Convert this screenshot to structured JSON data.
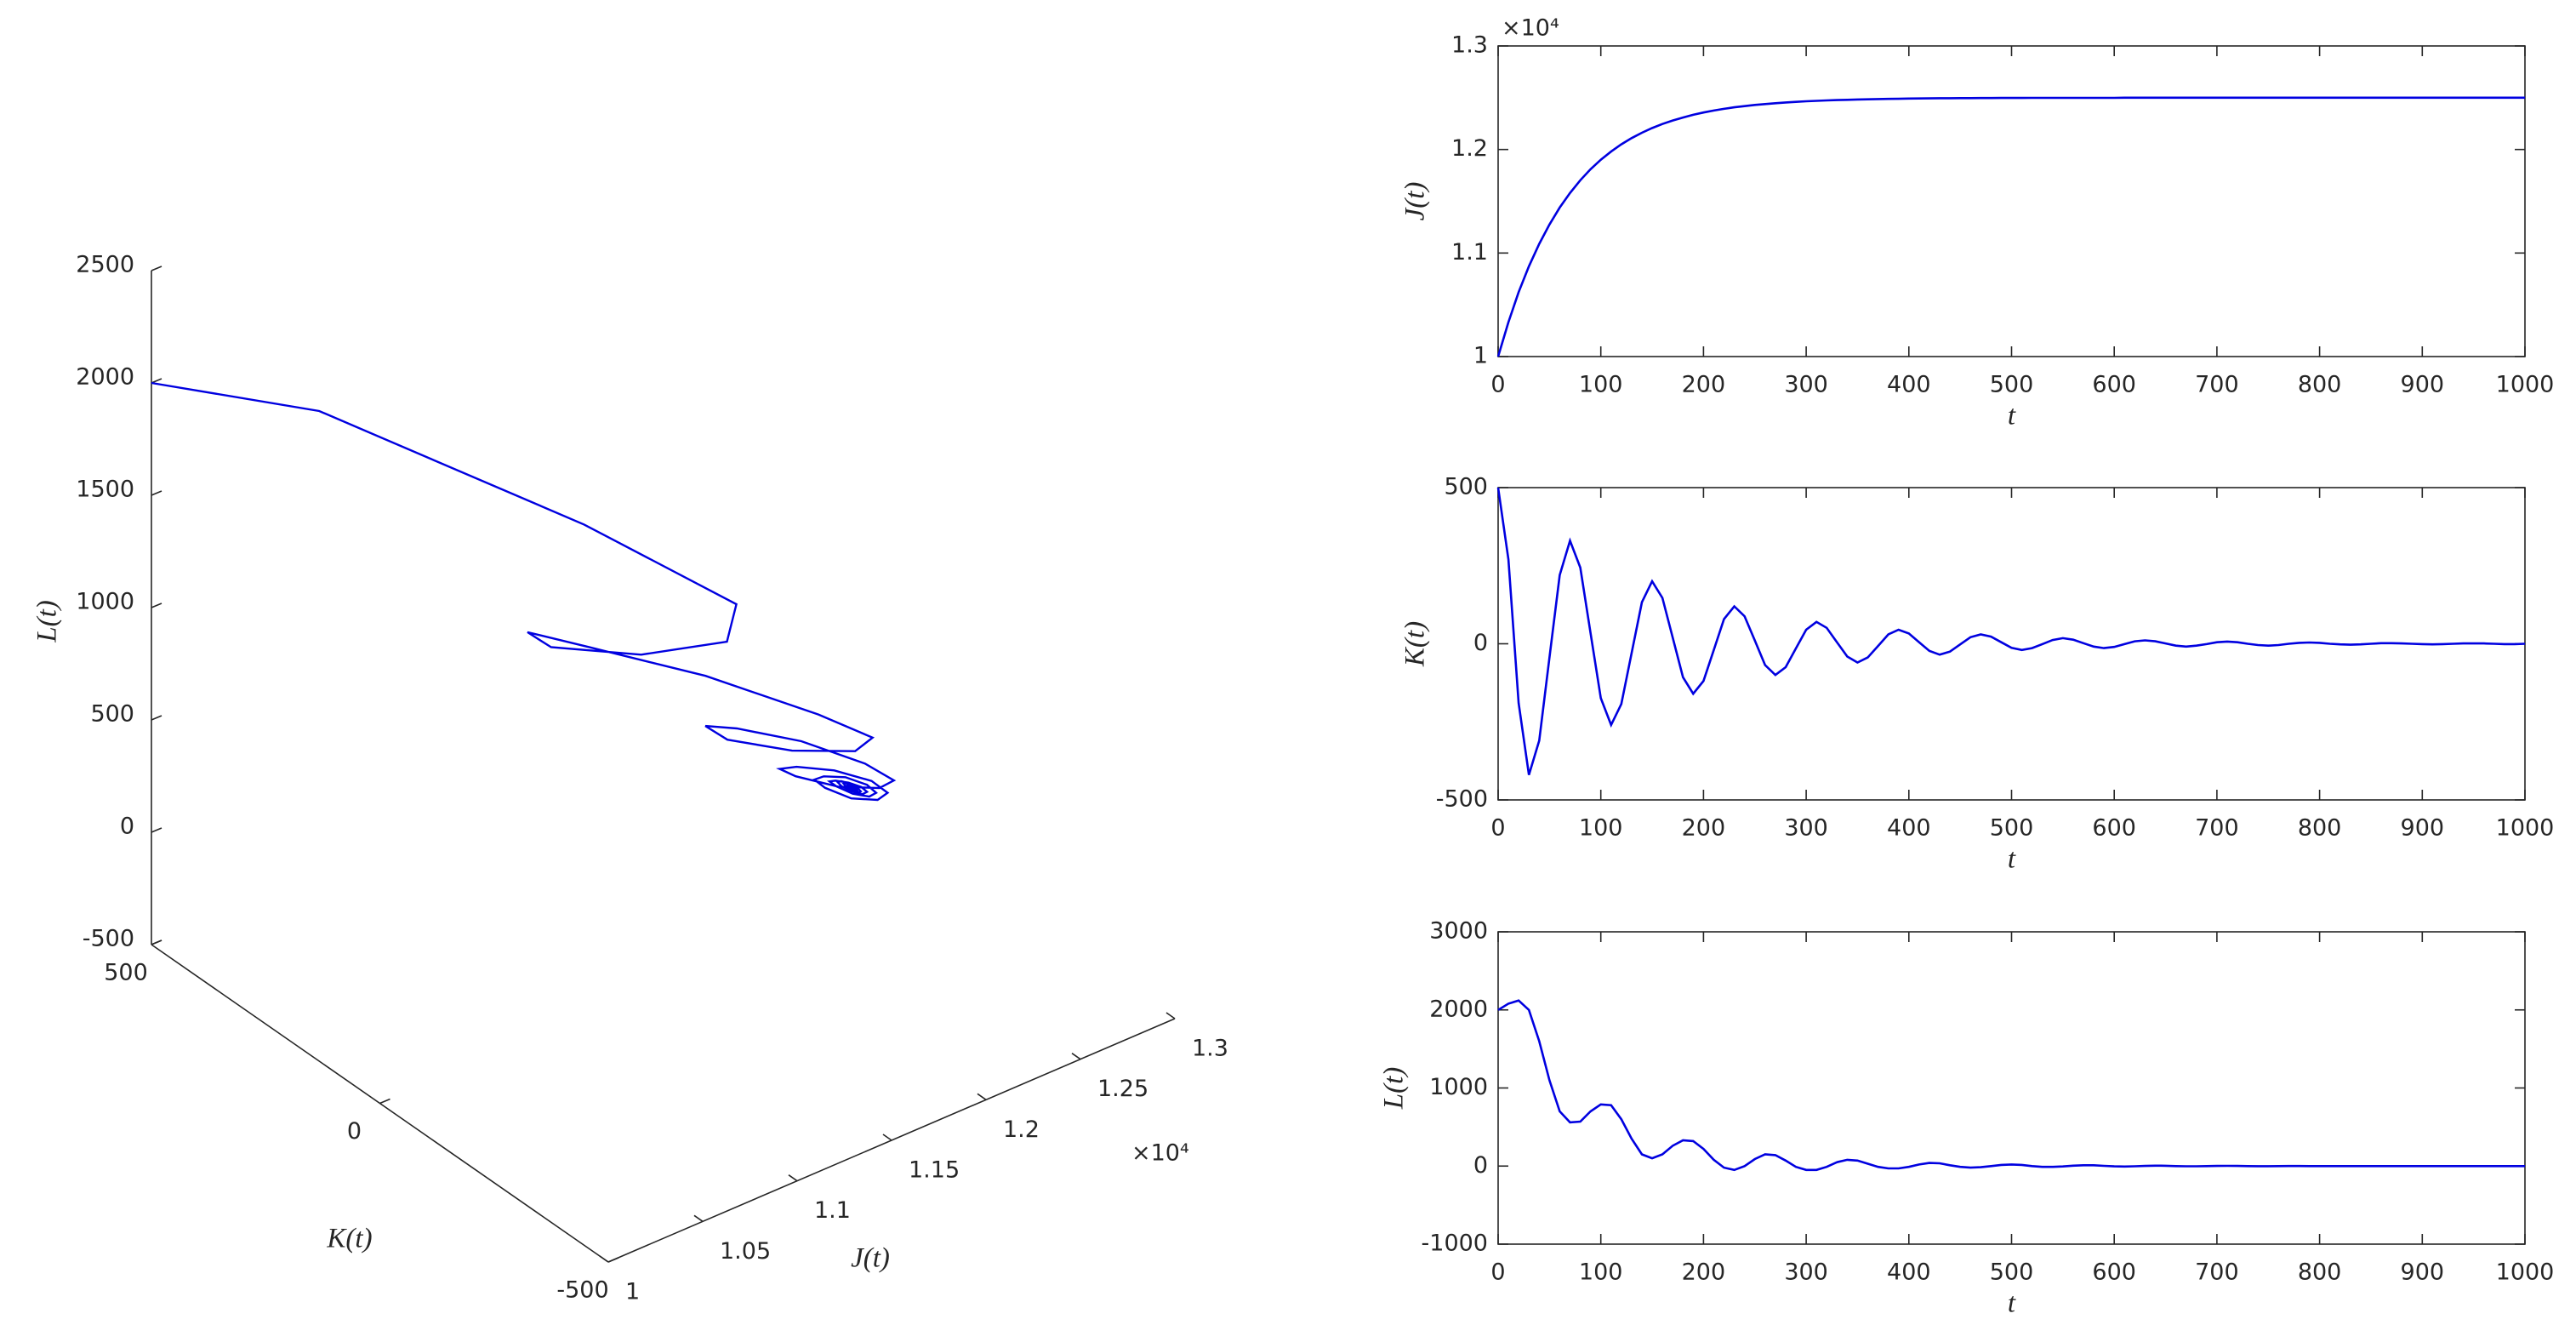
{
  "chart_data": [
    {
      "type": "line3d",
      "xlabel": "J(t)",
      "ylabel": "K(t)",
      "zlabel": "L(t)",
      "xlim": [
        10000,
        13000
      ],
      "xticks": [
        {
          "value": 10000,
          "label": "1"
        },
        {
          "value": 10500,
          "label": "1.05"
        },
        {
          "value": 11000,
          "label": "1.1"
        },
        {
          "value": 11500,
          "label": "1.15"
        },
        {
          "value": 12000,
          "label": "1.2"
        },
        {
          "value": 12500,
          "label": "1.25"
        },
        {
          "value": 13000,
          "label": "1.3"
        }
      ],
      "x_exponent": "×10⁴",
      "ylim": [
        -500,
        500
      ],
      "yticks": [
        -500,
        0,
        500
      ],
      "zlim": [
        -500,
        2500
      ],
      "zticks": [
        -500,
        0,
        500,
        1000,
        1500,
        2000,
        2500
      ]
    },
    {
      "type": "line",
      "xlabel": "t",
      "ylabel": "J(t)",
      "y_exponent": "×10⁴",
      "xlim": [
        0,
        1000
      ],
      "xticks": [
        0,
        100,
        200,
        300,
        400,
        500,
        600,
        700,
        800,
        900,
        1000
      ],
      "ylim": [
        10000,
        13000
      ],
      "yticks": [
        {
          "value": 10000,
          "label": "1"
        },
        {
          "value": 11000,
          "label": "1.1"
        },
        {
          "value": 12000,
          "label": "1.2"
        },
        {
          "value": 13000,
          "label": "1.3"
        }
      ],
      "x": [
        0,
        10,
        20,
        30,
        40,
        50,
        60,
        70,
        80,
        90,
        100,
        110,
        120,
        130,
        140,
        150,
        160,
        170,
        180,
        190,
        200,
        210,
        220,
        230,
        240,
        250,
        260,
        270,
        280,
        290,
        300,
        310,
        320,
        330,
        340,
        350,
        360,
        370,
        380,
        390,
        400,
        410,
        420,
        430,
        440,
        450,
        460,
        470,
        480,
        490,
        500,
        510,
        520,
        530,
        540,
        550,
        560,
        570,
        580,
        590,
        600,
        610,
        620,
        630,
        640,
        650,
        660,
        670,
        680,
        690,
        700,
        710,
        720,
        730,
        740,
        750,
        760,
        770,
        780,
        790,
        800,
        810,
        820,
        830,
        840,
        850,
        860,
        870,
        880,
        890,
        900,
        910,
        920,
        930,
        940,
        950,
        960,
        970,
        980,
        990,
        1000
      ],
      "series": [
        {
          "color": "#0000e0",
          "values": [
            10000,
            10332,
            10622,
            10872,
            11088,
            11275,
            11439,
            11580,
            11703,
            11809,
            11901,
            11980,
            12050,
            12110,
            12162,
            12207,
            12246,
            12280,
            12309,
            12335,
            12357,
            12376,
            12393,
            12407,
            12419,
            12430,
            12439,
            12447,
            12454,
            12460,
            12466,
            12470,
            12474,
            12477,
            12480,
            12483,
            12485,
            12487,
            12489,
            12490,
            12492,
            12493,
            12494,
            12495,
            12495,
            12496,
            12496,
            12497,
            12497,
            12498,
            12498,
            12498,
            12499,
            12499,
            12499,
            12499,
            12499,
            12499,
            12499,
            12499,
            12499,
            12500,
            12500,
            12500,
            12500,
            12500,
            12500,
            12500,
            12500,
            12500,
            12500,
            12500,
            12500,
            12500,
            12500,
            12500,
            12500,
            12500,
            12500,
            12500,
            12500,
            12500,
            12500,
            12500,
            12500,
            12500,
            12500,
            12500,
            12500,
            12500,
            12500,
            12500,
            12500,
            12500,
            12500,
            12500,
            12500,
            12500,
            12500,
            12500,
            12500
          ]
        }
      ]
    },
    {
      "type": "line",
      "xlabel": "t",
      "ylabel": "K(t)",
      "xlim": [
        0,
        1000
      ],
      "xticks": [
        0,
        100,
        200,
        300,
        400,
        500,
        600,
        700,
        800,
        900,
        1000
      ],
      "ylim": [
        -500,
        500
      ],
      "yticks": [
        -500,
        0,
        500
      ],
      "x": [
        0,
        10,
        20,
        30,
        40,
        50,
        60,
        70,
        80,
        90,
        100,
        110,
        120,
        130,
        140,
        150,
        160,
        170,
        180,
        190,
        200,
        210,
        220,
        230,
        240,
        250,
        260,
        270,
        280,
        290,
        300,
        310,
        320,
        330,
        340,
        350,
        360,
        370,
        380,
        390,
        400,
        410,
        420,
        430,
        440,
        450,
        460,
        470,
        480,
        490,
        500,
        510,
        520,
        530,
        540,
        550,
        560,
        570,
        580,
        590,
        600,
        610,
        620,
        630,
        640,
        650,
        660,
        670,
        680,
        690,
        700,
        710,
        720,
        730,
        740,
        750,
        760,
        770,
        780,
        790,
        800,
        810,
        820,
        830,
        840,
        850,
        860,
        870,
        880,
        890,
        900,
        910,
        920,
        930,
        940,
        950,
        960,
        970,
        980,
        990,
        1000
      ],
      "series": [
        {
          "color": "#0000e0",
          "values": [
            500,
            270,
            -190,
            -420,
            -310,
            -45,
            220,
            330,
            244,
            35,
            -174,
            -260,
            -193,
            -30,
            133,
            200,
            147,
            20,
            -107,
            -160,
            -119,
            -20,
            79,
            120,
            88,
            10,
            -68,
            -100,
            -75,
            -15,
            45,
            70,
            51,
            5,
            -41,
            -60,
            -44,
            -7,
            30,
            45,
            33,
            5,
            -23,
            -35,
            -25,
            -2,
            21,
            30,
            23,
            5,
            -13,
            -20,
            -14,
            -1,
            12,
            18,
            13,
            2,
            -9,
            -14,
            -10,
            -1,
            8,
            11,
            8,
            1,
            -6,
            -9,
            -6,
            -1,
            5,
            7,
            5,
            0,
            -4,
            -6,
            -4,
            0,
            3,
            4,
            3,
            0,
            -2,
            -3,
            -2,
            0,
            2,
            2,
            1,
            0,
            -1,
            -2,
            -1,
            0,
            1,
            1,
            1,
            0,
            -1,
            -1,
            0
          ]
        }
      ]
    },
    {
      "type": "line",
      "xlabel": "t",
      "ylabel": "L(t)",
      "xlim": [
        0,
        1000
      ],
      "xticks": [
        0,
        100,
        200,
        300,
        400,
        500,
        600,
        700,
        800,
        900,
        1000
      ],
      "ylim": [
        -1000,
        3000
      ],
      "yticks": [
        -1000,
        0,
        1000,
        2000,
        3000
      ],
      "x": [
        0,
        10,
        20,
        30,
        40,
        50,
        60,
        70,
        80,
        90,
        100,
        110,
        120,
        130,
        140,
        150,
        160,
        170,
        180,
        190,
        200,
        210,
        220,
        230,
        240,
        250,
        260,
        270,
        280,
        290,
        300,
        310,
        320,
        330,
        340,
        350,
        360,
        370,
        380,
        390,
        400,
        410,
        420,
        430,
        440,
        450,
        460,
        470,
        480,
        490,
        500,
        510,
        520,
        530,
        540,
        550,
        560,
        570,
        580,
        590,
        600,
        610,
        620,
        630,
        640,
        650,
        660,
        670,
        680,
        690,
        700,
        710,
        720,
        730,
        740,
        750,
        760,
        770,
        780,
        790,
        800,
        810,
        820,
        830,
        840,
        850,
        860,
        870,
        880,
        890,
        900,
        910,
        920,
        930,
        940,
        950,
        960,
        970,
        980,
        990,
        1000
      ],
      "series": [
        {
          "color": "#0000e0",
          "values": [
            2000,
            2080,
            2120,
            2000,
            1600,
            1100,
            700,
            560,
            570,
            700,
            790,
            780,
            600,
            350,
            150,
            100,
            150,
            260,
            330,
            320,
            220,
            80,
            -20,
            -50,
            0,
            90,
            150,
            140,
            70,
            -10,
            -50,
            -50,
            -10,
            50,
            80,
            70,
            30,
            -10,
            -30,
            -30,
            -10,
            20,
            40,
            35,
            10,
            -10,
            -20,
            -15,
            0,
            15,
            20,
            15,
            0,
            -10,
            -10,
            -5,
            5,
            10,
            10,
            3,
            -4,
            -6,
            -3,
            2,
            5,
            4,
            0,
            -3,
            -3,
            -1,
            2,
            3,
            2,
            0,
            -2,
            -2,
            0,
            1,
            1,
            0,
            -1,
            0,
            0,
            0,
            0,
            0,
            0,
            0,
            0,
            0,
            0,
            0,
            0,
            0,
            0,
            0,
            0,
            0,
            0,
            0,
            0
          ]
        }
      ]
    }
  ]
}
